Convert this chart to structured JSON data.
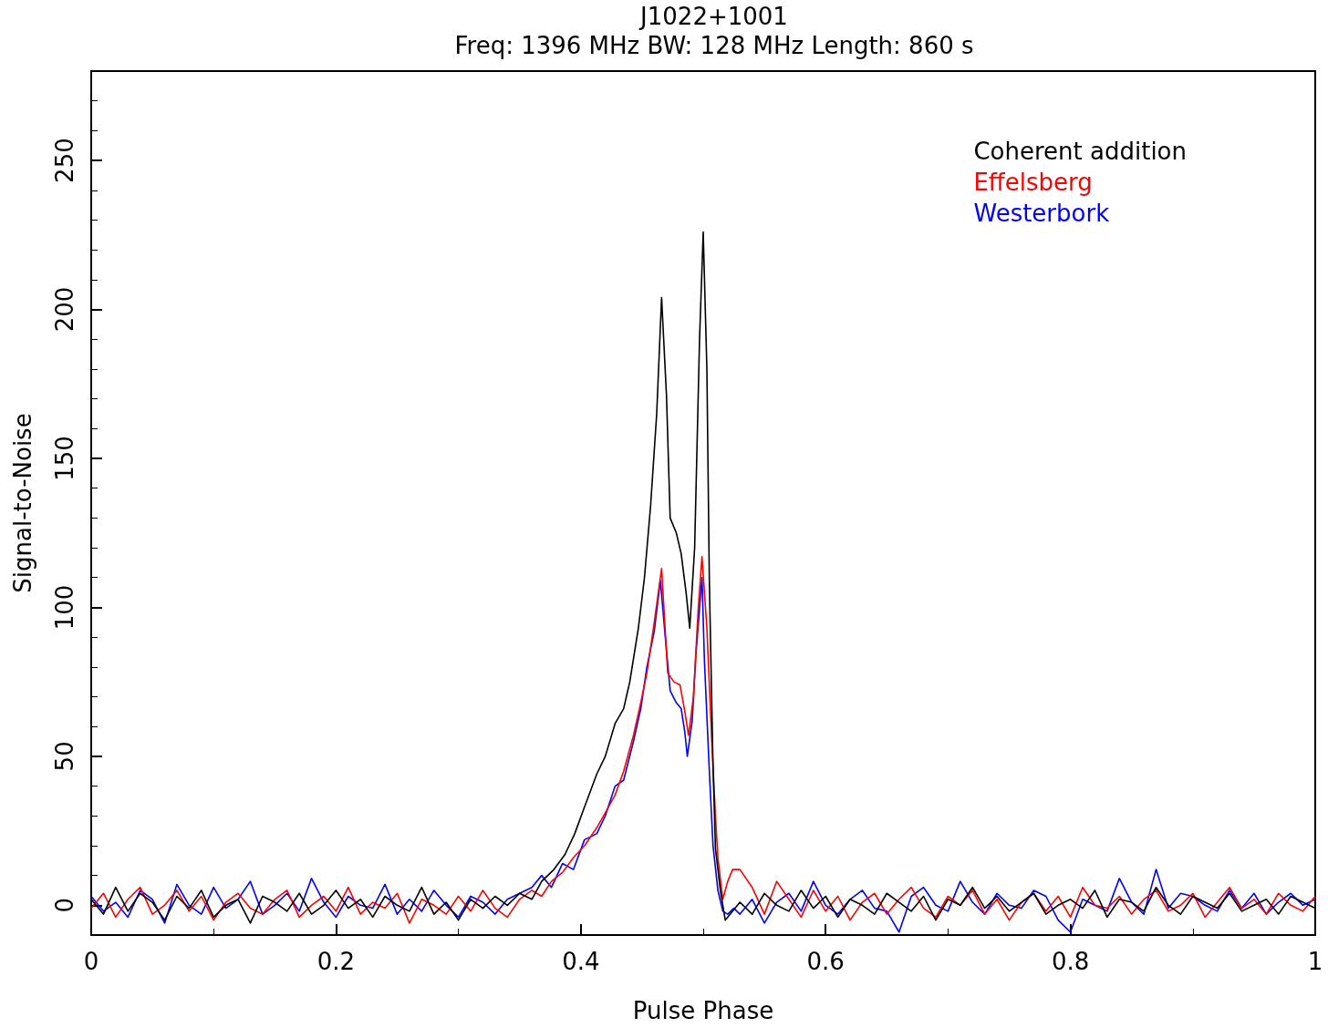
{
  "chart_data": {
    "type": "line",
    "title": "J1022+1001",
    "subtitle": "Freq: 1396 MHz BW: 128 MHz Length: 860 s",
    "xlabel": "Pulse Phase",
    "ylabel": "Signal-to-Noise",
    "xlim": [
      0,
      1
    ],
    "xticks": [
      0,
      0.2,
      0.4,
      0.6,
      0.8,
      1
    ],
    "ylim": [
      -10,
      280
    ],
    "yticks": [
      0,
      50,
      100,
      150,
      200,
      250
    ],
    "grid": false,
    "legend": "top right",
    "marker": "none",
    "line_style": "solid",
    "series": [
      {
        "name": "Coherent addition",
        "color": "#000000",
        "x": [
          0,
          0.01,
          0.02,
          0.03,
          0.04,
          0.05,
          0.06,
          0.07,
          0.08,
          0.09,
          0.1,
          0.11,
          0.12,
          0.13,
          0.14,
          0.15,
          0.16,
          0.17,
          0.18,
          0.19,
          0.2,
          0.21,
          0.22,
          0.23,
          0.24,
          0.25,
          0.26,
          0.27,
          0.28,
          0.29,
          0.3,
          0.31,
          0.32,
          0.33,
          0.34,
          0.35,
          0.36,
          0.368,
          0.378,
          0.387,
          0.395,
          0.403,
          0.413,
          0.42,
          0.428,
          0.435,
          0.44,
          0.447,
          0.452,
          0.457,
          0.462,
          0.466,
          0.47,
          0.473,
          0.478,
          0.482,
          0.486,
          0.489,
          0.493,
          0.497,
          0.5,
          0.503,
          0.505,
          0.508,
          0.51,
          0.514,
          0.518,
          0.524,
          0.53,
          0.54,
          0.55,
          0.56,
          0.57,
          0.58,
          0.59,
          0.6,
          0.61,
          0.62,
          0.63,
          0.64,
          0.65,
          0.66,
          0.67,
          0.68,
          0.69,
          0.7,
          0.71,
          0.72,
          0.73,
          0.74,
          0.75,
          0.76,
          0.77,
          0.78,
          0.79,
          0.8,
          0.81,
          0.82,
          0.83,
          0.84,
          0.85,
          0.86,
          0.87,
          0.88,
          0.89,
          0.9,
          0.91,
          0.92,
          0.93,
          0.94,
          0.95,
          0.96,
          0.97,
          0.98,
          0.99,
          1.0
        ],
        "values": [
          2,
          -3,
          6,
          -2,
          4,
          1,
          -5,
          3,
          -1,
          5,
          -4,
          0,
          2,
          -6,
          3,
          1,
          -2,
          4,
          -3,
          0,
          5,
          -1,
          2,
          -4,
          3,
          0,
          -2,
          6,
          -3,
          1,
          -5,
          2,
          -1,
          3,
          0,
          4,
          2,
          8,
          12,
          17,
          24,
          33,
          44,
          50,
          61,
          66,
          75,
          93,
          110,
          134,
          165,
          204,
          171,
          130,
          125,
          118,
          105,
          93,
          120,
          190,
          226,
          180,
          109,
          47,
          19,
          5,
          -5,
          -2,
          1,
          -3,
          4,
          0,
          -2,
          5,
          -1,
          3,
          -4,
          2,
          0,
          -3,
          4,
          1,
          -2,
          3,
          -5,
          2,
          0,
          6,
          -1,
          3,
          -2,
          1,
          4,
          -3,
          0,
          2,
          -1,
          5,
          -4,
          2,
          1,
          -2,
          6,
          0,
          -3,
          3,
          1,
          -1,
          4,
          -2,
          0,
          2,
          -3,
          3,
          1,
          -1
        ]
      },
      {
        "name": "Effelsberg",
        "color": "#ff0000",
        "x": [
          0,
          0.01,
          0.02,
          0.03,
          0.04,
          0.05,
          0.06,
          0.07,
          0.08,
          0.09,
          0.1,
          0.11,
          0.12,
          0.13,
          0.14,
          0.15,
          0.16,
          0.17,
          0.18,
          0.19,
          0.2,
          0.21,
          0.22,
          0.23,
          0.24,
          0.25,
          0.26,
          0.27,
          0.28,
          0.29,
          0.3,
          0.31,
          0.32,
          0.33,
          0.34,
          0.35,
          0.36,
          0.368,
          0.376,
          0.385,
          0.394,
          0.403,
          0.413,
          0.42,
          0.428,
          0.435,
          0.443,
          0.449,
          0.454,
          0.46,
          0.466,
          0.471,
          0.476,
          0.481,
          0.485,
          0.488,
          0.492,
          0.496,
          0.499,
          0.503,
          0.507,
          0.51,
          0.512,
          0.516,
          0.52,
          0.524,
          0.53,
          0.54,
          0.55,
          0.56,
          0.57,
          0.58,
          0.59,
          0.6,
          0.61,
          0.62,
          0.63,
          0.64,
          0.65,
          0.66,
          0.67,
          0.68,
          0.69,
          0.7,
          0.71,
          0.72,
          0.73,
          0.74,
          0.75,
          0.76,
          0.77,
          0.78,
          0.79,
          0.8,
          0.81,
          0.82,
          0.83,
          0.84,
          0.85,
          0.86,
          0.87,
          0.88,
          0.89,
          0.9,
          0.91,
          0.92,
          0.93,
          0.94,
          0.95,
          0.96,
          0.97,
          0.98,
          0.99,
          1.0
        ],
        "values": [
          -1,
          4,
          -4,
          2,
          6,
          -3,
          0,
          5,
          -2,
          3,
          -5,
          1,
          4,
          -1,
          -3,
          2,
          5,
          -4,
          0,
          3,
          -2,
          6,
          -3,
          1,
          -1,
          4,
          -6,
          2,
          0,
          -3,
          3,
          -2,
          5,
          -1,
          -4,
          2,
          5,
          3,
          8,
          11,
          16,
          20,
          26,
          31,
          37,
          45,
          57,
          68,
          78,
          95,
          113,
          78,
          75,
          74,
          65,
          57,
          70,
          100,
          117,
          93,
          55,
          30,
          16,
          2,
          8,
          12,
          12,
          6,
          -3,
          8,
          2,
          -4,
          5,
          -2,
          3,
          -5,
          1,
          4,
          -3,
          2,
          6,
          -1,
          -4,
          3,
          0,
          5,
          -3,
          2,
          -5,
          1,
          4,
          -2,
          3,
          -4,
          6,
          0,
          -1,
          3,
          -3,
          2,
          5,
          -2,
          0,
          4,
          -4,
          1,
          6,
          -1,
          2,
          -3,
          4,
          0,
          -2,
          3
        ]
      },
      {
        "name": "Westerbork",
        "color": "#0000ff",
        "x": [
          0,
          0.01,
          0.02,
          0.03,
          0.04,
          0.05,
          0.06,
          0.07,
          0.08,
          0.09,
          0.1,
          0.11,
          0.12,
          0.13,
          0.14,
          0.15,
          0.16,
          0.17,
          0.18,
          0.19,
          0.2,
          0.21,
          0.22,
          0.23,
          0.24,
          0.25,
          0.26,
          0.27,
          0.28,
          0.29,
          0.3,
          0.31,
          0.32,
          0.33,
          0.34,
          0.35,
          0.36,
          0.368,
          0.376,
          0.385,
          0.394,
          0.403,
          0.413,
          0.42,
          0.428,
          0.435,
          0.443,
          0.449,
          0.454,
          0.46,
          0.465,
          0.469,
          0.473,
          0.478,
          0.482,
          0.485,
          0.487,
          0.491,
          0.494,
          0.499,
          0.501,
          0.505,
          0.508,
          0.512,
          0.516,
          0.52,
          0.525,
          0.53,
          0.54,
          0.55,
          0.56,
          0.57,
          0.58,
          0.59,
          0.6,
          0.61,
          0.62,
          0.63,
          0.64,
          0.65,
          0.66,
          0.67,
          0.68,
          0.69,
          0.7,
          0.71,
          0.72,
          0.73,
          0.74,
          0.75,
          0.76,
          0.77,
          0.78,
          0.79,
          0.8,
          0.81,
          0.82,
          0.83,
          0.84,
          0.85,
          0.86,
          0.87,
          0.88,
          0.89,
          0.9,
          0.91,
          0.92,
          0.93,
          0.94,
          0.95,
          0.96,
          0.97,
          0.98,
          0.99,
          1.0
        ],
        "values": [
          3,
          -2,
          1,
          -4,
          5,
          2,
          -6,
          7,
          0,
          -3,
          6,
          -1,
          2,
          8,
          -3,
          0,
          4,
          -2,
          9,
          1,
          -4,
          3,
          0,
          -1,
          7,
          -3,
          2,
          -2,
          5,
          0,
          -4,
          3,
          1,
          -3,
          2,
          4,
          6,
          10,
          6,
          14,
          12,
          22,
          24,
          30,
          40,
          42,
          55,
          66,
          80,
          92,
          109,
          90,
          72,
          68,
          66,
          58,
          50,
          62,
          84,
          110,
          82,
          45,
          20,
          5,
          -2,
          -3,
          -1,
          -3,
          2,
          -6,
          1,
          4,
          -2,
          8,
          0,
          -3,
          2,
          5,
          -1,
          -2,
          -9,
          3,
          6,
          0,
          -2,
          8,
          1,
          -3,
          4,
          0,
          -1,
          5,
          3,
          -5,
          -9,
          2,
          0,
          -2,
          9,
          1,
          -3,
          12,
          -1,
          4,
          3,
          0,
          -2,
          5,
          -1,
          4,
          -3,
          1,
          4,
          0,
          2
        ]
      }
    ]
  }
}
